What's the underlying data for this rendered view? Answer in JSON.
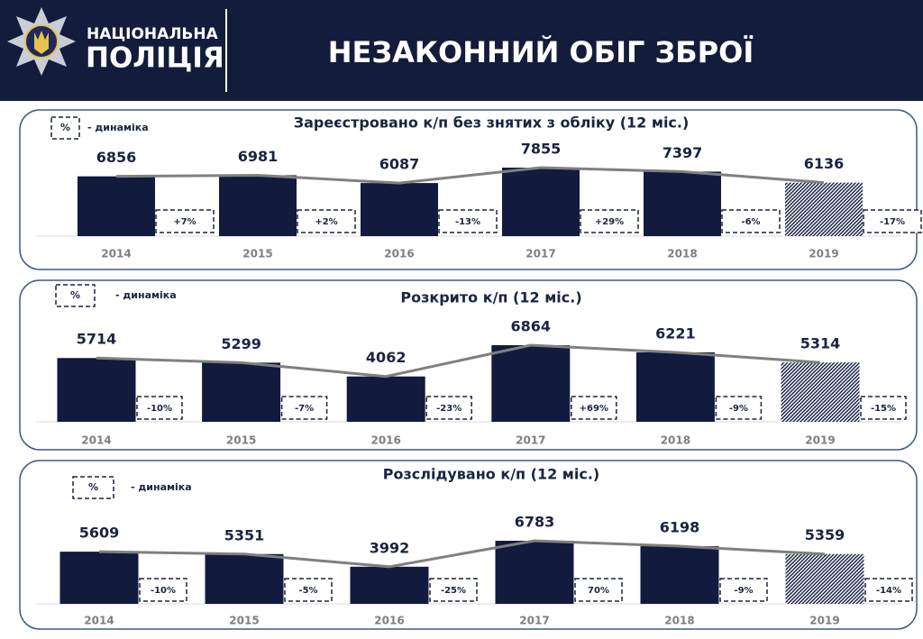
{
  "header": {
    "logo_line1": "НАЦІОНАЛЬНА",
    "logo_line2": "ПОЛІЦІЯ",
    "title": "НЕЗАКОННИЙ ОБІГ ЗБРОЇ"
  },
  "chart_data": [
    {
      "type": "bar",
      "title": "Зареєстровано к/п без знятих з обліку (12 міс.)",
      "legend_symbol": "%",
      "legend_label": "- динаміка",
      "categories": [
        "2014",
        "2015",
        "2016",
        "2017",
        "2018",
        "2019"
      ],
      "values": [
        6856,
        6981,
        6087,
        7855,
        7397,
        6136
      ],
      "dynamics": [
        "+7%",
        "+2%",
        "-13%",
        "+29%",
        "-6%",
        "-17%"
      ],
      "color": "#121a3d",
      "line_color": "#808080"
    },
    {
      "type": "bar",
      "title": "Розкрито к/п (12 міс.)",
      "legend_symbol": "%",
      "legend_label": "- динаміка",
      "categories": [
        "2014",
        "2015",
        "2016",
        "2017",
        "2018",
        "2019"
      ],
      "values": [
        5714,
        5299,
        4062,
        6864,
        6221,
        5314
      ],
      "dynamics": [
        "-10%",
        "-7%",
        "-23%",
        "+69%",
        "-9%",
        "-15%"
      ],
      "color": "#121a3d",
      "line_color": "#808080"
    },
    {
      "type": "bar",
      "title": "Розслідувано к/п (12 міс.)",
      "legend_symbol": "%",
      "legend_label": "- динаміка",
      "categories": [
        "2014",
        "2015",
        "2016",
        "2017",
        "2018",
        "2019"
      ],
      "values": [
        5609,
        5351,
        3992,
        6783,
        6198,
        5359
      ],
      "dynamics": [
        "-10%",
        "-5%",
        "-25%",
        "70%",
        "-9%",
        "-14%"
      ],
      "color": "#121a3d",
      "line_color": "#808080"
    }
  ]
}
